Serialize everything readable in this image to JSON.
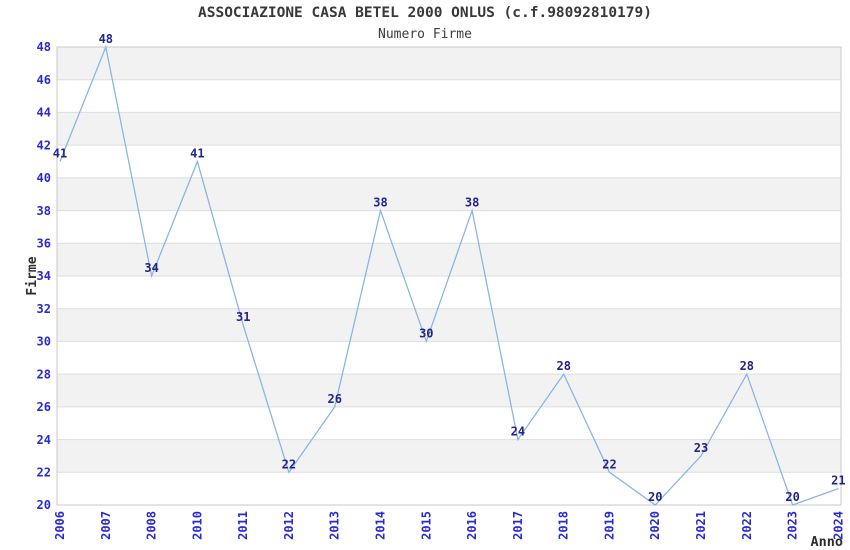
{
  "header": {
    "title": "ASSOCIAZIONE CASA BETEL 2000 ONLUS (c.f.98092810179)",
    "subtitle": "Numero Firme"
  },
  "chart_data": {
    "type": "line",
    "title": "ASSOCIAZIONE CASA BETEL 2000 ONLUS (c.f.98092810179)",
    "subtitle": "Numero Firme",
    "xlabel": "Anno",
    "ylabel": "Firme",
    "x": [
      "2006",
      "2007",
      "2008",
      "2010",
      "2011",
      "2012",
      "2013",
      "2014",
      "2015",
      "2016",
      "2017",
      "2018",
      "2019",
      "2020",
      "2021",
      "2022",
      "2023",
      "2024"
    ],
    "series": [
      {
        "name": "Numero Firme",
        "values": [
          41,
          48,
          34,
          41,
          31,
          22,
          26,
          38,
          30,
          38,
          24,
          28,
          22,
          20,
          23,
          28,
          20,
          21
        ]
      }
    ],
    "ylim": [
      20,
      48
    ],
    "ytick_step": 2,
    "grid": true,
    "legend": "none",
    "band_fill": "alternating",
    "colors": {
      "line": "#85b4e8",
      "tick_labels": "#2a2ad2",
      "data_labels": "#23238c",
      "band_gray": "#f2f2f2",
      "band_white": "#ffffff",
      "gridline": "#dedede",
      "border": "#c9c9c9",
      "title_text": "#383838",
      "axis_title_text": "#2e2e2e"
    }
  }
}
